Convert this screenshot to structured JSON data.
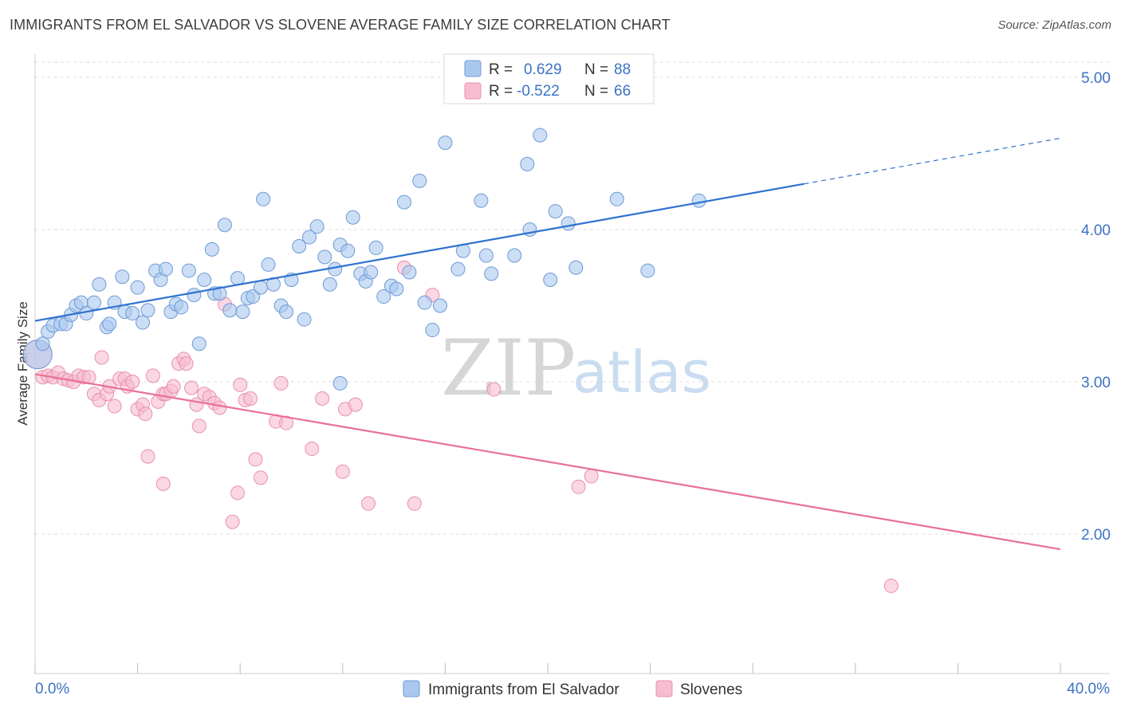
{
  "title": "IMMIGRANTS FROM EL SALVADOR VS SLOVENE AVERAGE FAMILY SIZE CORRELATION CHART",
  "source": "Source: ZipAtlas.com",
  "watermark": {
    "zip": "ZIP",
    "atlas": "atlas"
  },
  "legend": {
    "rows": [
      {
        "r_label": "R =",
        "r_value": "0.629",
        "n_label": "N =",
        "n_value": "88"
      },
      {
        "r_label": "R =",
        "r_value": "-0.522",
        "n_label": "N =",
        "n_value": "66"
      }
    ]
  },
  "colors": {
    "blue_fill": "#a9c8ee",
    "blue_stroke": "#6f9ad6",
    "blue_line": "#2f72d0",
    "pink_fill": "#f7bcd0",
    "pink_stroke": "#e98fae",
    "pink_line": "#e8709a",
    "grid": "#dddddd",
    "tick_text": "#3a74c4"
  },
  "chart_data": {
    "type": "scatter",
    "title": "IMMIGRANTS FROM EL SALVADOR VS SLOVENE AVERAGE FAMILY SIZE CORRELATION CHART",
    "xlabel": "",
    "ylabel": "Average Family Size",
    "xlim": [
      0,
      40
    ],
    "ylim": [
      1.0,
      5.15
    ],
    "x_tick_labels": [
      "0.0%",
      "40.0%"
    ],
    "y_ticks": [
      2.0,
      3.0,
      4.0,
      5.0
    ],
    "y_tick_labels": [
      "2.00",
      "3.00",
      "4.00",
      "5.00"
    ],
    "grid": true,
    "legend_position": "top-center",
    "series": [
      {
        "name": "Immigrants from El Salvador",
        "color": "#a9c8ee",
        "points": [
          [
            0.1,
            3.18
          ],
          [
            0.3,
            3.25
          ],
          [
            0.5,
            3.33
          ],
          [
            0.7,
            3.37
          ],
          [
            1.0,
            3.38
          ],
          [
            1.2,
            3.38
          ],
          [
            1.4,
            3.44
          ],
          [
            1.6,
            3.5
          ],
          [
            1.8,
            3.52
          ],
          [
            2.0,
            3.45
          ],
          [
            2.3,
            3.52
          ],
          [
            2.5,
            3.64
          ],
          [
            2.8,
            3.36
          ],
          [
            2.9,
            3.38
          ],
          [
            3.1,
            3.52
          ],
          [
            3.4,
            3.69
          ],
          [
            3.5,
            3.46
          ],
          [
            3.8,
            3.45
          ],
          [
            4.0,
            3.62
          ],
          [
            4.2,
            3.39
          ],
          [
            4.4,
            3.47
          ],
          [
            4.7,
            3.73
          ],
          [
            4.9,
            3.67
          ],
          [
            5.1,
            3.74
          ],
          [
            5.3,
            3.46
          ],
          [
            5.5,
            3.51
          ],
          [
            5.7,
            3.49
          ],
          [
            6.0,
            3.73
          ],
          [
            6.2,
            3.57
          ],
          [
            6.4,
            3.25
          ],
          [
            6.6,
            3.67
          ],
          [
            6.9,
            3.87
          ],
          [
            7.0,
            3.58
          ],
          [
            7.2,
            3.58
          ],
          [
            7.4,
            4.03
          ],
          [
            7.6,
            3.47
          ],
          [
            7.9,
            3.68
          ],
          [
            8.1,
            3.46
          ],
          [
            8.3,
            3.55
          ],
          [
            8.5,
            3.56
          ],
          [
            8.8,
            3.62
          ],
          [
            9.1,
            3.77
          ],
          [
            9.3,
            3.64
          ],
          [
            9.6,
            3.5
          ],
          [
            9.8,
            3.46
          ],
          [
            10.0,
            3.67
          ],
          [
            10.3,
            3.89
          ],
          [
            10.5,
            3.41
          ],
          [
            10.7,
            3.95
          ],
          [
            11.0,
            4.02
          ],
          [
            11.3,
            3.82
          ],
          [
            11.5,
            3.64
          ],
          [
            11.7,
            3.74
          ],
          [
            11.9,
            3.9
          ],
          [
            12.2,
            3.86
          ],
          [
            12.4,
            4.08
          ],
          [
            12.7,
            3.71
          ],
          [
            12.9,
            3.66
          ],
          [
            13.1,
            3.72
          ],
          [
            13.3,
            3.88
          ],
          [
            13.6,
            3.56
          ],
          [
            13.9,
            3.63
          ],
          [
            14.1,
            3.61
          ],
          [
            14.4,
            4.18
          ],
          [
            14.6,
            3.72
          ],
          [
            15.0,
            4.32
          ],
          [
            15.2,
            3.52
          ],
          [
            15.5,
            3.34
          ],
          [
            15.8,
            3.5
          ],
          [
            16.0,
            4.57
          ],
          [
            16.5,
            3.74
          ],
          [
            16.7,
            3.86
          ],
          [
            17.4,
            4.19
          ],
          [
            17.6,
            3.83
          ],
          [
            17.8,
            3.71
          ],
          [
            18.7,
            3.83
          ],
          [
            19.2,
            4.43
          ],
          [
            19.3,
            4.0
          ],
          [
            19.7,
            4.62
          ],
          [
            20.1,
            3.67
          ],
          [
            20.3,
            4.12
          ],
          [
            20.8,
            4.04
          ],
          [
            21.1,
            3.75
          ],
          [
            22.7,
            4.2
          ],
          [
            23.9,
            3.73
          ],
          [
            25.9,
            4.19
          ],
          [
            11.9,
            2.99
          ],
          [
            8.9,
            4.2
          ]
        ]
      },
      {
        "name": "Slovenes",
        "color": "#f7bcd0",
        "points": [
          [
            0.1,
            3.18
          ],
          [
            0.3,
            3.03
          ],
          [
            0.5,
            3.04
          ],
          [
            0.7,
            3.03
          ],
          [
            0.9,
            3.06
          ],
          [
            1.1,
            3.02
          ],
          [
            1.3,
            3.01
          ],
          [
            1.5,
            3.0
          ],
          [
            1.7,
            3.04
          ],
          [
            1.9,
            3.03
          ],
          [
            2.1,
            3.03
          ],
          [
            2.3,
            2.92
          ],
          [
            2.5,
            2.88
          ],
          [
            2.6,
            3.16
          ],
          [
            2.8,
            2.92
          ],
          [
            2.9,
            2.97
          ],
          [
            3.1,
            2.84
          ],
          [
            3.3,
            3.02
          ],
          [
            3.5,
            3.02
          ],
          [
            3.6,
            2.97
          ],
          [
            3.8,
            3.0
          ],
          [
            4.0,
            2.82
          ],
          [
            4.2,
            2.85
          ],
          [
            4.3,
            2.79
          ],
          [
            4.4,
            2.51
          ],
          [
            4.6,
            3.04
          ],
          [
            4.8,
            2.87
          ],
          [
            5.0,
            2.92
          ],
          [
            5.1,
            2.92
          ],
          [
            5.3,
            2.94
          ],
          [
            5.4,
            2.97
          ],
          [
            5.6,
            3.12
          ],
          [
            5.8,
            3.15
          ],
          [
            5.9,
            3.12
          ],
          [
            6.1,
            2.96
          ],
          [
            6.3,
            2.85
          ],
          [
            6.4,
            2.71
          ],
          [
            6.6,
            2.92
          ],
          [
            6.8,
            2.9
          ],
          [
            7.0,
            2.86
          ],
          [
            7.2,
            2.83
          ],
          [
            7.4,
            3.51
          ],
          [
            7.7,
            2.08
          ],
          [
            7.9,
            2.27
          ],
          [
            8.0,
            2.98
          ],
          [
            8.2,
            2.88
          ],
          [
            8.4,
            2.89
          ],
          [
            8.6,
            2.49
          ],
          [
            8.8,
            2.37
          ],
          [
            9.4,
            2.74
          ],
          [
            9.6,
            2.99
          ],
          [
            9.8,
            2.73
          ],
          [
            10.8,
            2.56
          ],
          [
            11.2,
            2.89
          ],
          [
            12.0,
            2.41
          ],
          [
            12.1,
            2.82
          ],
          [
            12.5,
            2.85
          ],
          [
            13.0,
            2.2
          ],
          [
            14.4,
            3.75
          ],
          [
            14.8,
            2.2
          ],
          [
            15.5,
            3.57
          ],
          [
            17.9,
            2.95
          ],
          [
            21.2,
            2.31
          ],
          [
            21.7,
            2.38
          ],
          [
            33.4,
            1.66
          ],
          [
            5.0,
            2.33
          ]
        ]
      }
    ],
    "trend_lines": [
      {
        "series": "Immigrants from El Salvador",
        "x": [
          0,
          30,
          40
        ],
        "y": [
          3.4,
          4.3,
          4.6
        ],
        "dashed_from_x": 30
      },
      {
        "series": "Slovenes",
        "x": [
          0,
          40
        ],
        "y": [
          3.05,
          1.9
        ]
      }
    ]
  }
}
